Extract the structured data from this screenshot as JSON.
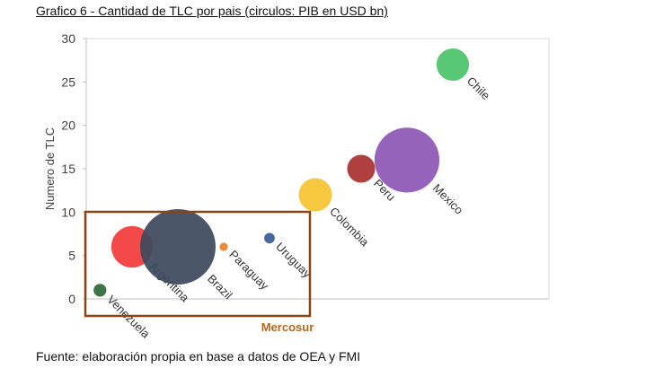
{
  "title": "Grafico 6 - Cantidad de TLC por pais (circulos: PIB en USD bn)",
  "source": "Fuente: elaboración propia en base a datos de OEA y FMI",
  "chart_data": {
    "type": "scatter",
    "variant": "bubble",
    "title": "Grafico 6 - Cantidad de TLC por pais (circulos: PIB en USD bn)",
    "xlabel": "",
    "ylabel": "Numero de TLC",
    "ylim": [
      0,
      30
    ],
    "yticks": [
      0,
      5,
      10,
      15,
      20,
      25,
      30
    ],
    "xlim": [
      0,
      10
    ],
    "grid": false,
    "annotation": "Mercosur",
    "annotation_color": "#8B4513",
    "points": [
      {
        "label": "Venezuela",
        "x": 0.3,
        "y": 1,
        "size": 0.17,
        "color": "#2E6B3A"
      },
      {
        "label": "Argentina",
        "x": 1.0,
        "y": 6,
        "size": 0.55,
        "color": "#F23B3B"
      },
      {
        "label": "Brazil",
        "x": 2.0,
        "y": 6,
        "size": 1.0,
        "color": "#3D4A5E"
      },
      {
        "label": "Paraguay",
        "x": 3.0,
        "y": 6,
        "size": 0.11,
        "color": "#E8842C"
      },
      {
        "label": "Uruguay",
        "x": 4.0,
        "y": 7,
        "size": 0.14,
        "color": "#3A5C96"
      },
      {
        "label": "Colombia",
        "x": 5.0,
        "y": 12,
        "size": 0.44,
        "color": "#F5C431"
      },
      {
        "label": "Peru",
        "x": 6.0,
        "y": 15,
        "size": 0.37,
        "color": "#A83232"
      },
      {
        "label": "Mexico",
        "x": 7.0,
        "y": 16,
        "size": 0.86,
        "color": "#8E57B5"
      },
      {
        "label": "Chile",
        "x": 8.0,
        "y": 27,
        "size": 0.43,
        "color": "#4CC46A"
      }
    ]
  }
}
